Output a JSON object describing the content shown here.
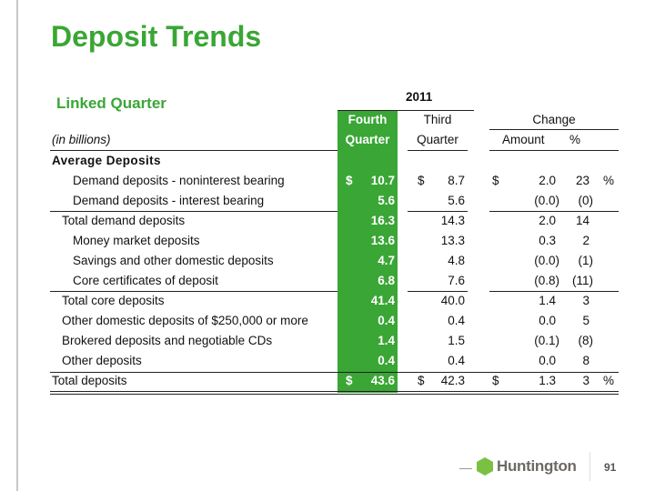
{
  "title": "Deposit Trends",
  "subtitle": "Linked Quarter",
  "header": {
    "year": "2011",
    "col1a": "Fourth",
    "col1b": "Quarter",
    "col2a": "Third",
    "col2b": "Quarter",
    "change": "Change",
    "amount": "Amount",
    "pct": "%",
    "units": "(in billions)"
  },
  "section": "Average Deposits",
  "rows": [
    {
      "label": "Demand deposits - noninterest bearing",
      "q4": "10.7",
      "q3": "8.7",
      "amt": "2.0",
      "pct": "23",
      "dollar": true
    },
    {
      "label": "Demand deposits - interest bearing",
      "q4": "5.6",
      "q3": "5.6",
      "amt": "(0.0)",
      "pct": "(0)"
    },
    {
      "label": "Total demand deposits",
      "q4": "16.3",
      "q3": "14.3",
      "amt": "2.0",
      "pct": "14"
    },
    {
      "label": "Money market deposits",
      "q4": "13.6",
      "q3": "13.3",
      "amt": "0.3",
      "pct": "2"
    },
    {
      "label": "Savings and other domestic deposits",
      "q4": "4.7",
      "q3": "4.8",
      "amt": "(0.0)",
      "pct": "(1)"
    },
    {
      "label": "Core certificates of deposit",
      "q4": "6.8",
      "q3": "7.6",
      "amt": "(0.8)",
      "pct": "(11)"
    },
    {
      "label": "Total core deposits",
      "q4": "41.4",
      "q3": "40.0",
      "amt": "1.4",
      "pct": "3"
    },
    {
      "label": "Other domestic deposits of $250,000 or more",
      "q4": "0.4",
      "q3": "0.4",
      "amt": "0.0",
      "pct": "5"
    },
    {
      "label": "Brokered deposits and negotiable CDs",
      "q4": "1.4",
      "q3": "1.5",
      "amt": "(0.1)",
      "pct": "(8)"
    },
    {
      "label": "Other deposits",
      "q4": "0.4",
      "q3": "0.4",
      "amt": "0.0",
      "pct": "8"
    },
    {
      "label": "Total deposits",
      "q4": "43.6",
      "q3": "42.3",
      "amt": "1.3",
      "pct": "3",
      "dollar": true
    }
  ],
  "currency": "$",
  "percent_sign": "%",
  "footer": {
    "brand": "Huntington",
    "page": "91"
  }
}
